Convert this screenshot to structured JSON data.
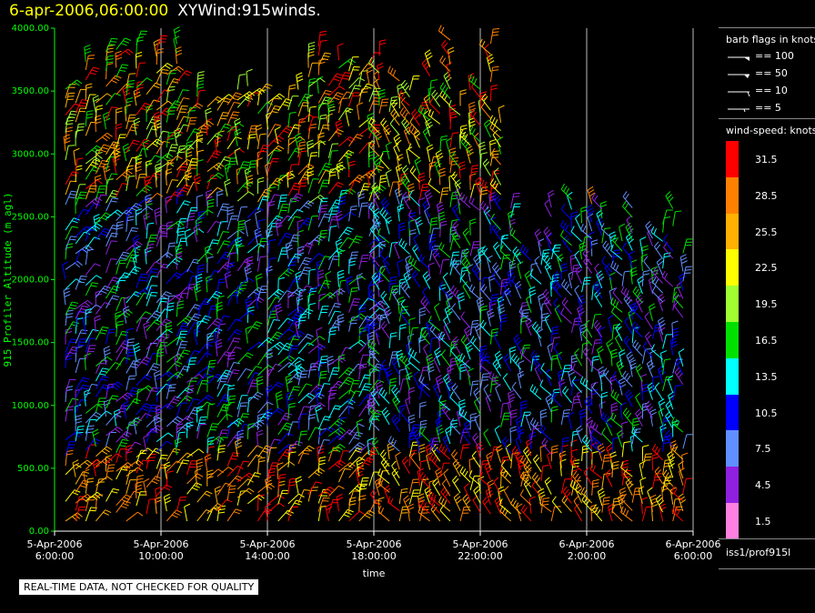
{
  "header": {
    "time": "6-apr-2006,06:00:00",
    "product": "XYWind:915winds."
  },
  "chart_data": {
    "type": "scatter",
    "ylabel": "915 Profiler Altitude (m agl)",
    "xlabel": "time",
    "ylim": [
      0,
      4000
    ],
    "y_ticks": [
      "0.00",
      "500.00",
      "1000.00",
      "1500.00",
      "2000.00",
      "2500.00",
      "3000.00",
      "3500.00",
      "4000.00"
    ],
    "x_ticks": [
      {
        "date": "5-Apr-2006",
        "time": "6:00:00"
      },
      {
        "date": "5-Apr-2006",
        "time": "10:00:00"
      },
      {
        "date": "5-Apr-2006",
        "time": "14:00:00"
      },
      {
        "date": "5-Apr-2006",
        "time": "18:00:00"
      },
      {
        "date": "5-Apr-2006",
        "time": "22:00:00"
      },
      {
        "date": "6-Apr-2006",
        "time": "2:00:00"
      },
      {
        "date": "6-Apr-2006",
        "time": "6:00:00"
      }
    ],
    "grid": "vertical at each 4-hour tick",
    "speed_colors": [
      {
        "label": "31.5",
        "color": "#ff0000"
      },
      {
        "label": "28.5",
        "color": "#ff8000"
      },
      {
        "label": "25.5",
        "color": "#ffb000"
      },
      {
        "label": "22.5",
        "color": "#ffff00"
      },
      {
        "label": "19.5",
        "color": "#a0ff30"
      },
      {
        "label": "16.5",
        "color": "#00e000"
      },
      {
        "label": "13.5",
        "color": "#00ffff"
      },
      {
        "label": "10.5",
        "color": "#0000ff"
      },
      {
        "label": "7.5",
        "color": "#6090ff"
      },
      {
        "label": "4.5",
        "color": "#9020e0"
      },
      {
        "label": "1.5",
        "color": "#ff80e0"
      }
    ]
  },
  "legend": {
    "flags_title": "barb flags in knots",
    "flags": [
      "== 100",
      "== 50",
      "== 10",
      "== 5"
    ],
    "speed_title": "wind-speed: knots"
  },
  "footer": {
    "station_id": "iss1/prof915l",
    "notice": "REAL-TIME DATA, NOT CHECKED FOR QUALITY"
  }
}
